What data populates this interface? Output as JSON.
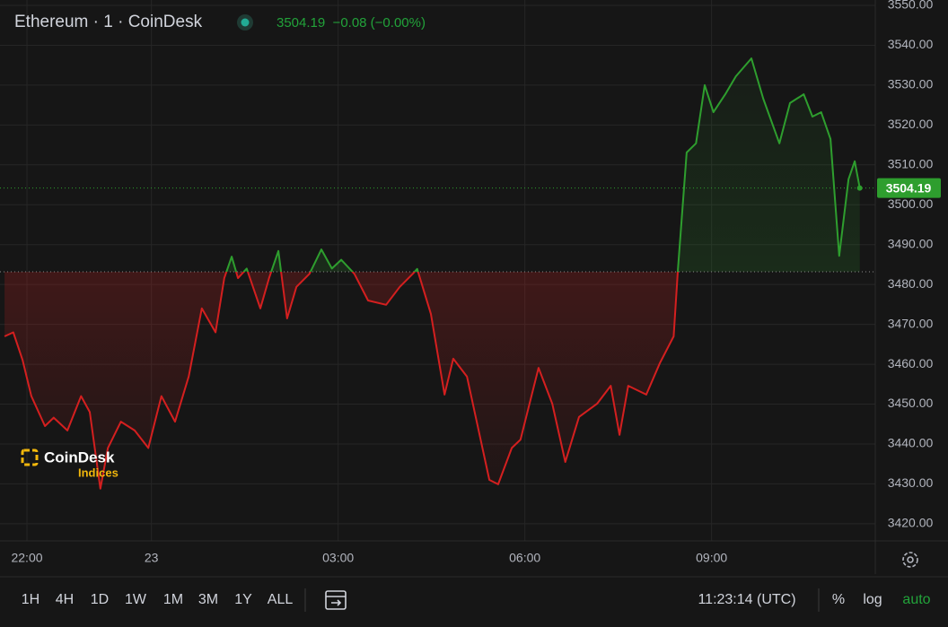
{
  "chart_data": {
    "type": "baseline-line",
    "title": "Ethereum · 1 · CoinDesk",
    "quote": "3504.19  −0.08 (−0.00%)",
    "logo": {
      "name": "CoinDesk",
      "sub": "Indices"
    },
    "x": [
      21.64,
      21.78,
      21.93,
      22.07,
      22.29,
      22.43,
      22.65,
      22.87,
      23.01,
      23.18,
      23.3,
      23.51,
      23.73,
      23.95,
      24.16,
      24.38,
      24.6,
      24.81,
      25.03,
      25.17,
      25.29,
      25.39,
      25.53,
      25.75,
      25.89,
      26.04,
      26.18,
      26.33,
      26.54,
      26.73,
      26.9,
      27.05,
      27.26,
      27.48,
      27.77,
      27.99,
      28.2,
      28.27,
      28.49,
      28.71,
      28.85,
      29.07,
      29.21,
      29.43,
      29.57,
      29.79,
      29.93,
      30.22,
      30.44,
      30.65,
      30.87,
      31.16,
      31.38,
      31.52,
      31.66,
      31.95,
      32.17,
      32.39,
      32.46,
      32.6,
      32.75,
      32.89,
      33.03,
      33.22,
      33.39,
      33.64,
      33.83,
      34.09,
      34.26,
      34.48,
      34.62,
      34.76,
      34.91,
      35.05,
      35.2,
      35.3,
      35.38
    ],
    "series": [
      {
        "name": "Ethereum",
        "values": [
          3467.0,
          3468.0,
          3461.0,
          3452.0,
          3444.5,
          3446.6,
          3443.4,
          3452.0,
          3448.0,
          3428.8,
          3439.0,
          3445.6,
          3443.4,
          3439.0,
          3452.0,
          3445.6,
          3457.0,
          3474.0,
          3468.0,
          3481.6,
          3487.0,
          3481.6,
          3484.0,
          3474.0,
          3481.6,
          3488.4,
          3471.5,
          3479.4,
          3482.7,
          3488.8,
          3484.0,
          3486.2,
          3482.7,
          3476.0,
          3474.9,
          3479.4,
          3482.7,
          3483.9,
          3472.6,
          3452.4,
          3461.4,
          3456.9,
          3446.8,
          3431.0,
          3429.9,
          3439.0,
          3441.1,
          3459.1,
          3450.1,
          3435.5,
          3446.8,
          3450.1,
          3454.6,
          3442.3,
          3454.6,
          3452.4,
          3460.3,
          3467.0,
          3483.9,
          3513.1,
          3515.4,
          3530.0,
          3523.2,
          3527.7,
          3532.2,
          3536.7,
          3526.6,
          3515.4,
          3525.5,
          3527.7,
          3522.1,
          3523.2,
          3516.5,
          3487.2,
          3506.4,
          3510.9,
          3504.19
        ]
      }
    ],
    "baseline": 3483.2,
    "up_color": "#2e9e2e",
    "down_color": "#d41f1f",
    "xlim": [
      21.567,
      35.63
    ],
    "xticks": [
      {
        "value": 22,
        "label": "22:00"
      },
      {
        "value": 24,
        "label": "23"
      },
      {
        "value": 27,
        "label": "03:00"
      },
      {
        "value": 30,
        "label": "06:00"
      },
      {
        "value": 33,
        "label": "09:00"
      }
    ],
    "ylim": [
      3415.7,
      3551.35
    ],
    "yticks": [
      {
        "value": 3420,
        "label": "3420.00"
      },
      {
        "value": 3430,
        "label": "3430.00"
      },
      {
        "value": 3440,
        "label": "3440.00"
      },
      {
        "value": 3450,
        "label": "3450.00"
      },
      {
        "value": 3460,
        "label": "3460.00"
      },
      {
        "value": 3470,
        "label": "3470.00"
      },
      {
        "value": 3480,
        "label": "3480.00"
      },
      {
        "value": 3490,
        "label": "3490.00"
      },
      {
        "value": 3500,
        "label": "3500.00"
      },
      {
        "value": 3510,
        "label": "3510.00"
      },
      {
        "value": 3520,
        "label": "3520.00"
      },
      {
        "value": 3530,
        "label": "3530.00"
      },
      {
        "value": 3540,
        "label": "3540.00"
      },
      {
        "value": 3550,
        "label": "3550.00"
      }
    ],
    "grid": true,
    "log_scale": false,
    "toolbar": {
      "ranges": [
        "1H",
        "4H",
        "1D",
        "1W",
        "1M",
        "3M",
        "1Y",
        "ALL"
      ],
      "clock": "11:23:14 (UTC)",
      "percent": "%",
      "log": "log",
      "auto": "auto"
    }
  }
}
